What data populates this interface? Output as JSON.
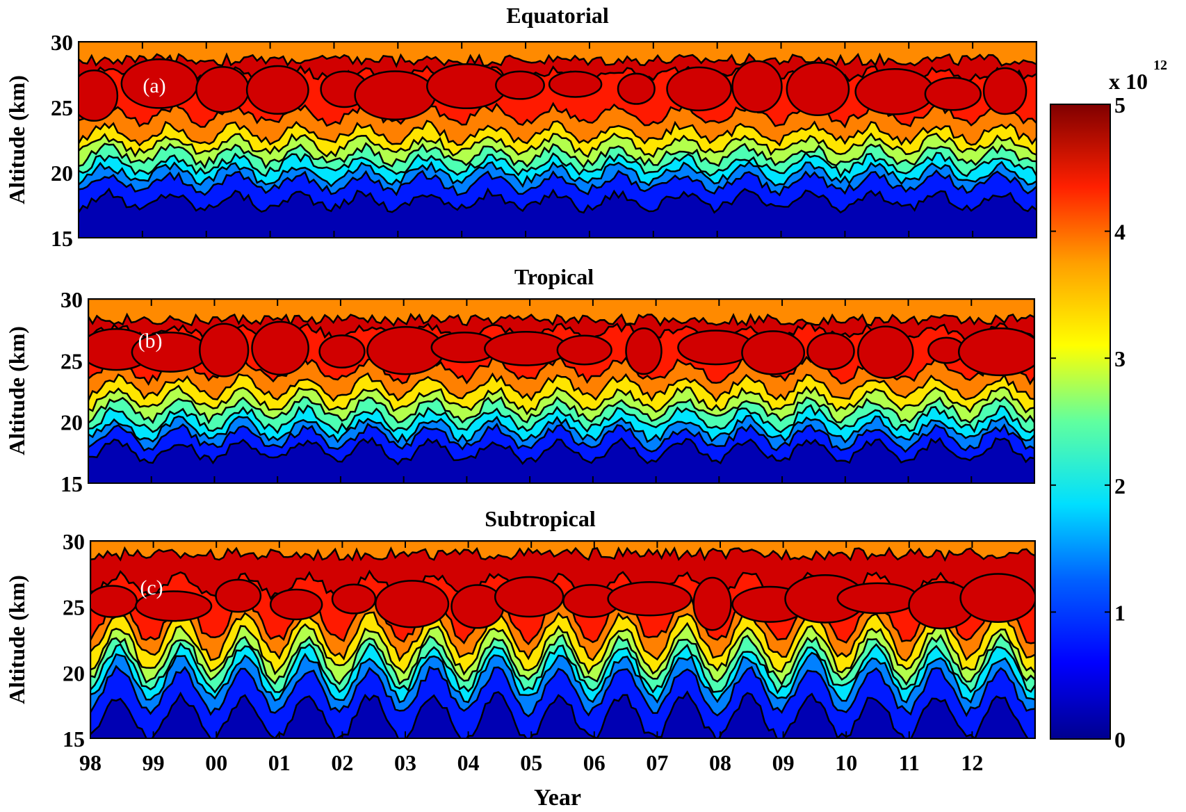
{
  "chart_data": {
    "type": "heatmap",
    "subtype": "filled-contour",
    "xlabel": "Year",
    "ylabel": "Altitude (km)",
    "xlim": [
      1998,
      2013
    ],
    "ylim": [
      15,
      30
    ],
    "x_ticks": [
      1998,
      1999,
      2000,
      2001,
      2002,
      2003,
      2004,
      2005,
      2006,
      2007,
      2008,
      2009,
      2010,
      2011,
      2012
    ],
    "x_tick_labels": [
      "98",
      "99",
      "00",
      "01",
      "02",
      "03",
      "04",
      "05",
      "06",
      "07",
      "08",
      "09",
      "10",
      "11",
      "12"
    ],
    "y_ticks": [
      15,
      20,
      25,
      30
    ],
    "y_tick_labels": [
      "15",
      "20",
      "25",
      "30"
    ],
    "colorbar": {
      "range": [
        0,
        5
      ],
      "ticks": [
        "0",
        "1",
        "2",
        "3",
        "4",
        "5"
      ],
      "multiplier_base": "x 10",
      "multiplier_exp": "12",
      "colormap": "jet"
    },
    "contour_levels": [
      0.5,
      1.0,
      1.5,
      2.0,
      2.5,
      3.0,
      3.5,
      4.0,
      4.5
    ],
    "panels": [
      {
        "title": "Equatorial",
        "label": "(a)",
        "level_altitudes_km": [
          17.8,
          19.2,
          19.9,
          20.6,
          21.3,
          22.1,
          23.0,
          24.4,
          27.5
        ],
        "seasonal_amplitude_km": 0.6,
        "max_region_top_km": 28.6
      },
      {
        "title": "Tropical",
        "label": "(b)",
        "level_altitudes_km": [
          17.6,
          18.7,
          19.4,
          20.2,
          21.0,
          21.8,
          22.8,
          24.2,
          27.3
        ],
        "seasonal_amplitude_km": 0.8,
        "max_region_top_km": 28.3
      },
      {
        "title": "Subtropical",
        "label": "(c)",
        "level_altitudes_km": [
          16.6,
          18.6,
          19.6,
          20.3,
          21.0,
          21.8,
          22.8,
          24.0,
          26.6
        ],
        "seasonal_amplitude_km": 1.6,
        "max_region_top_km": 29.0
      }
    ]
  }
}
